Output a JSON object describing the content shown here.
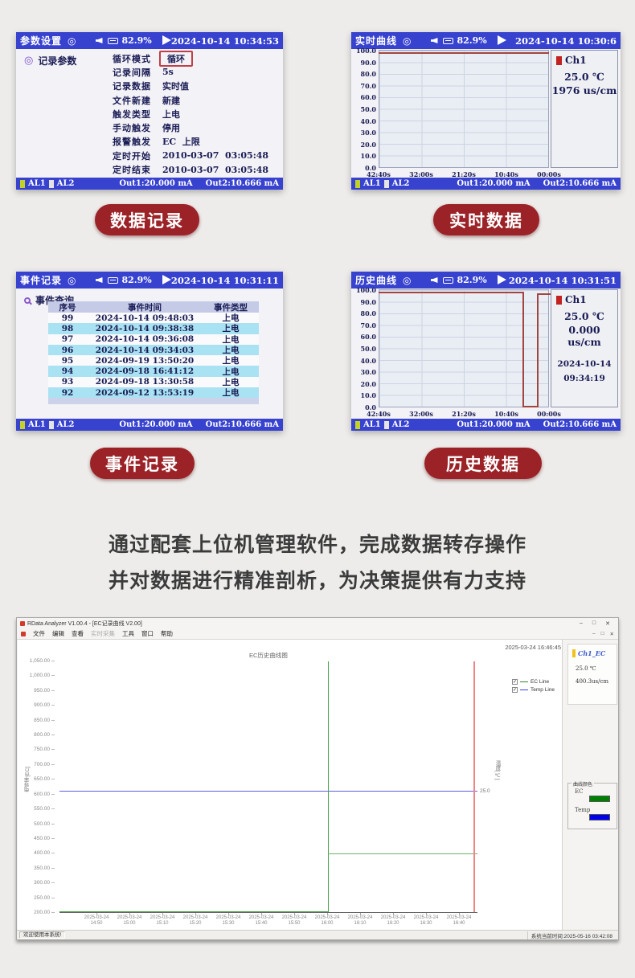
{
  "page": {
    "bg": "#edecea",
    "description": [
      "通过配套上位机管理软件，完成数据转存操作",
      "并对数据进行精准剖析，为决策提供有力支持"
    ]
  },
  "colors": {
    "device_bar_blue": "#3742cf",
    "pill_red": "#9b2227",
    "event_row_cyan": "#a9e2f2",
    "device_curve_red": "#a34440",
    "ec_green": "#2e8b2e",
    "temp_blue": "#3c3ce8",
    "cursor_red": "#ef8585",
    "channel_red_square": "#c32222",
    "al1_yellow": "#c3d229"
  },
  "pills": {
    "data_record": "数据记录",
    "realtime_data": "实时数据",
    "event_record": "事件记录",
    "history_data": "历史数据"
  },
  "device_common": {
    "battery": "82.9%",
    "al1": "AL1",
    "al2": "AL2",
    "out1": "Out1:20.000 mA",
    "out2": "Out2:10.666 mA"
  },
  "panel_params": {
    "title": "参数设置",
    "datetime": "2024-10-14 10:34:53",
    "section": "记录参数",
    "rows": [
      {
        "label": "循环模式",
        "value": "循环",
        "boxed": true
      },
      {
        "label": "记录间隔",
        "value": "5s"
      },
      {
        "label": "记录数据",
        "value": "实时值"
      },
      {
        "label": "文件新建",
        "value": "新建"
      },
      {
        "label": "触发类型",
        "value": "上电"
      },
      {
        "label": "手动触发",
        "value": "停用"
      },
      {
        "label": "报警触发",
        "value": "EC  上限"
      },
      {
        "label": "定时开始",
        "value": "2010-03-07  03:05:48"
      },
      {
        "label": "定时结束",
        "value": "2010-03-07  03:05:48"
      }
    ]
  },
  "panel_realtime": {
    "title": "实时曲线",
    "datetime": "2024-10-14 10:30:6",
    "channel": "Ch1",
    "temperature": "25.0 ℃",
    "reading": "1976 us/cm",
    "y_ticks": [
      "100.0",
      "90.0",
      "80.0",
      "70.0",
      "60.0",
      "50.0",
      "40.0",
      "30.0",
      "20.0",
      "10.0",
      "0.0"
    ],
    "x_ticks": [
      "42:40s",
      "32:00s",
      "21:20s",
      "10:40s",
      "00:00s"
    ]
  },
  "panel_events": {
    "title": "事件记录",
    "datetime": "2024-10-14 10:31:11",
    "section": "事件查询",
    "headers": [
      "序号",
      "事件时间",
      "事件类型"
    ],
    "rows": [
      [
        "99",
        "2024-10-14 09:48:03",
        "上电"
      ],
      [
        "98",
        "2024-10-14 09:38:38",
        "上电"
      ],
      [
        "97",
        "2024-10-14 09:36:08",
        "上电"
      ],
      [
        "96",
        "2024-10-14 09:34:03",
        "上电"
      ],
      [
        "95",
        "2024-09-19 13:50:20",
        "上电"
      ],
      [
        "94",
        "2024-09-18 16:41:12",
        "上电"
      ],
      [
        "93",
        "2024-09-18 13:30:58",
        "上电"
      ],
      [
        "92",
        "2024-09-12 13:53:19",
        "上电"
      ]
    ]
  },
  "panel_history": {
    "title": "历史曲线",
    "datetime": "2024-10-14 10:31:51",
    "channel": "Ch1",
    "temperature": "25.0 ℃",
    "reading": "0.000 us/cm",
    "marker_date": "2024-10-14",
    "marker_time": "09:34:19",
    "y_ticks": [
      "100.0",
      "90.0",
      "80.0",
      "70.0",
      "60.0",
      "50.0",
      "40.0",
      "30.0",
      "20.0",
      "10.0",
      "0.0"
    ],
    "x_ticks": [
      "42:40s",
      "32:00s",
      "21:20s",
      "10:40s",
      "00:00s"
    ]
  },
  "software": {
    "title": "RData Analyzer V1.00.4 - [EC记录曲线 V2.00]",
    "menu": [
      "文件",
      "编辑",
      "查看",
      "实时采集",
      "工具",
      "窗口",
      "帮助"
    ],
    "disabled_menu": "实时采集",
    "window_controls": [
      "–",
      "□",
      "✕"
    ],
    "chart_title": "EC历史曲线图",
    "timestamp": "2025-03-24 16:46:45",
    "legend": [
      {
        "label": "EC Line",
        "color": "#2e8b2e"
      },
      {
        "label": "Temp Line",
        "color": "#3c3ce8"
      }
    ],
    "channel_box": {
      "name": "Ch1_EC",
      "temperature": "25.0 ℃",
      "reading": "400.3us/cm"
    },
    "colors_box": {
      "title": "曲线颜色",
      "items": [
        {
          "label": "EC",
          "color": "#008000"
        },
        {
          "label": "Temp",
          "color": "#0000ee"
        }
      ]
    },
    "y_label_left": "电导率[EC]",
    "y_label_right": "温度[℃]",
    "right_axis_tick": "25.0",
    "y_ticks": [
      "1,050.00",
      "1,000.00",
      "950.00",
      "900.00",
      "850.00",
      "800.00",
      "750.00",
      "700.00",
      "650.00",
      "600.00",
      "550.00",
      "500.00",
      "450.00",
      "400.00",
      "350.00",
      "300.00",
      "250.00",
      "200.00"
    ],
    "x_date": "2025-03-24",
    "x_times": [
      "14:50",
      "15:00",
      "15:10",
      "15:20",
      "15:30",
      "15:40",
      "15:50",
      "16:00",
      "16:10",
      "16:20",
      "16:30",
      "16:40"
    ],
    "status_left": "欢迎使用本系统!",
    "status_right": "系统当前时间:2025-05-16 03:42:08"
  },
  "chart_data": [
    {
      "id": "realtime-curve",
      "type": "line",
      "title": "实时曲线",
      "x_ticks": [
        "42:40s",
        "32:00s",
        "21:20s",
        "10:40s",
        "00:00s"
      ],
      "ylim": [
        0,
        100
      ],
      "y_ticks": [
        100,
        90,
        80,
        70,
        60,
        50,
        40,
        30,
        20,
        10,
        0
      ],
      "grid": true,
      "series": [
        {
          "name": "Ch1",
          "color": "#a34440",
          "points": [
            [
              "42:40s",
              99.5
            ],
            [
              "00:00s",
              99.5
            ]
          ]
        }
      ],
      "annotation": {
        "channel": "Ch1",
        "temperature": "25.0 ℃",
        "reading": "1976 us/cm"
      }
    },
    {
      "id": "history-curve",
      "type": "line",
      "title": "历史曲线",
      "x_ticks": [
        "42:40s",
        "32:00s",
        "21:20s",
        "10:40s",
        "00:00s"
      ],
      "ylim": [
        0,
        100
      ],
      "y_ticks": [
        100,
        90,
        80,
        70,
        60,
        50,
        40,
        30,
        20,
        10,
        0
      ],
      "grid": true,
      "series": [
        {
          "name": "Ch1",
          "color": "#a34440",
          "points": [
            [
              "42:40s",
              99
            ],
            [
              "05:20s",
              99
            ],
            [
              "05:20s",
              0
            ],
            [
              "02:40s",
              0
            ],
            [
              "02:40s",
              99
            ],
            [
              "00:00s",
              99
            ]
          ]
        }
      ],
      "annotation": {
        "channel": "Ch1",
        "temperature": "25.0 ℃",
        "reading": "0.000 us/cm",
        "date": "2024-10-14",
        "time": "09:34:19"
      }
    },
    {
      "id": "ec-history",
      "type": "line",
      "title": "EC历史曲线图",
      "x_date": "2025-03-24",
      "x_ticks": [
        "14:50",
        "15:00",
        "15:10",
        "15:20",
        "15:30",
        "15:40",
        "15:50",
        "16:00",
        "16:10",
        "16:20",
        "16:30",
        "16:40"
      ],
      "y_left": {
        "label": "电导率[EC]",
        "min": 200,
        "max": 1050,
        "step": 50
      },
      "y_right": {
        "label": "温度[℃]",
        "tick": 25.0
      },
      "grid": false,
      "legend_position": "top-right",
      "series": [
        {
          "name": "EC Line",
          "color": "#2e8b2e",
          "axis": "left",
          "spike_offscale_at": "16:00",
          "points": [
            [
              "14:50",
              200
            ],
            [
              "16:00",
              200
            ],
            [
              "16:00",
              1050
            ],
            [
              "16:00",
              400.3
            ],
            [
              "16:46",
              400.3
            ]
          ]
        },
        {
          "name": "Temp Line",
          "color": "#3c3ce8",
          "axis": "right",
          "points": [
            [
              "14:50",
              25.0
            ],
            [
              "16:46",
              25.0
            ]
          ]
        }
      ],
      "cursor": {
        "time": "16:46",
        "color": "#ef8585"
      },
      "timestamp": "2025-03-24 16:46:45"
    }
  ]
}
